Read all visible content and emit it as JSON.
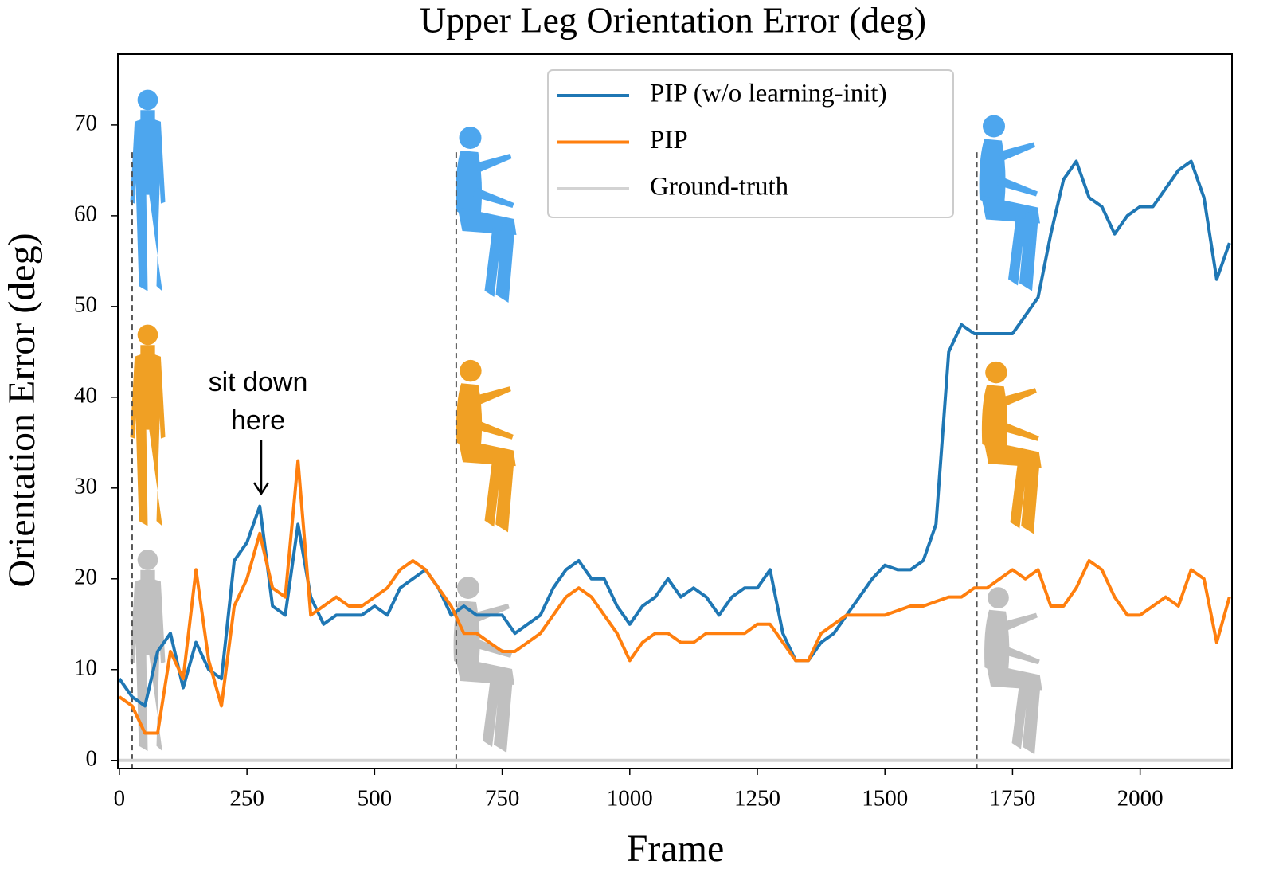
{
  "chart_data": {
    "type": "line",
    "title": "Upper Leg Orientation Error (deg)",
    "xlabel": "Frame",
    "ylabel": "Orientation Error (deg)",
    "x": [
      0,
      25,
      50,
      75,
      100,
      125,
      150,
      175,
      200,
      225,
      250,
      275,
      300,
      325,
      350,
      375,
      400,
      425,
      450,
      475,
      500,
      525,
      550,
      575,
      600,
      625,
      650,
      675,
      700,
      725,
      750,
      775,
      800,
      825,
      850,
      875,
      900,
      925,
      950,
      975,
      1000,
      1025,
      1050,
      1075,
      1100,
      1125,
      1150,
      1175,
      1200,
      1225,
      1250,
      1275,
      1300,
      1325,
      1350,
      1375,
      1400,
      1425,
      1450,
      1475,
      1500,
      1525,
      1550,
      1575,
      1600,
      1625,
      1650,
      1675,
      1700,
      1725,
      1750,
      1775,
      1800,
      1825,
      1850,
      1875,
      1900,
      1925,
      1950,
      1975,
      2000,
      2025,
      2050,
      2075,
      2100,
      2125,
      2150,
      2175
    ],
    "series": [
      {
        "name": "PIP (w/o learning-init)",
        "color": "#1f77b4",
        "values": [
          9,
          7,
          6,
          12,
          14,
          8,
          13,
          10,
          9,
          22,
          24,
          28,
          17,
          16,
          26,
          18,
          15,
          16,
          16,
          16,
          17,
          16,
          19,
          20,
          21,
          19,
          16,
          17,
          16,
          16,
          16,
          14,
          15,
          16,
          19,
          21,
          22,
          20,
          20,
          17,
          15,
          17,
          18,
          20,
          18,
          19,
          18,
          16,
          18,
          19,
          19,
          21,
          14,
          11,
          11,
          13,
          14,
          16,
          18,
          20,
          21.5,
          21,
          21,
          22,
          26,
          45,
          48,
          47,
          47,
          47,
          47,
          49,
          51,
          58,
          64,
          66,
          62,
          61,
          58,
          60,
          61,
          61,
          63,
          65,
          66,
          62,
          53,
          57
        ]
      },
      {
        "name": "PIP",
        "color": "#ff7f0e",
        "values": [
          7,
          6,
          3,
          3,
          12,
          9,
          21,
          11,
          6,
          17,
          20,
          25,
          19,
          18,
          33,
          16,
          17,
          18,
          17,
          17,
          18,
          19,
          21,
          22,
          21,
          19,
          17,
          14,
          14,
          13,
          12,
          12,
          13,
          14,
          16,
          18,
          19,
          18,
          16,
          14,
          11,
          13,
          14,
          14,
          13,
          13,
          14,
          14,
          14,
          14,
          15,
          15,
          13,
          11,
          11,
          14,
          15,
          16,
          16,
          16,
          16,
          16.5,
          17,
          17,
          17.5,
          18,
          18,
          19,
          19,
          20,
          21,
          20,
          21,
          17,
          17,
          19,
          22,
          21,
          18,
          16,
          16,
          17,
          18,
          17,
          21,
          20,
          13,
          18
        ]
      },
      {
        "name": "Ground-truth",
        "color": "#d3d3d3",
        "values": [
          0,
          0,
          0,
          0,
          0,
          0,
          0,
          0,
          0,
          0,
          0,
          0,
          0,
          0,
          0,
          0,
          0,
          0,
          0,
          0,
          0,
          0,
          0,
          0,
          0,
          0,
          0,
          0,
          0,
          0,
          0,
          0,
          0,
          0,
          0,
          0,
          0,
          0,
          0,
          0,
          0,
          0,
          0,
          0,
          0,
          0,
          0,
          0,
          0,
          0,
          0,
          0,
          0,
          0,
          0,
          0,
          0,
          0,
          0,
          0,
          0,
          0,
          0,
          0,
          0,
          0,
          0,
          0,
          0,
          0,
          0,
          0,
          0,
          0,
          0,
          0,
          0,
          0,
          0,
          0,
          0,
          0,
          0,
          0,
          0,
          0,
          0,
          0
        ]
      }
    ],
    "vlines": [
      25,
      660,
      1680
    ],
    "annotation": [
      "sit down",
      "here"
    ],
    "xlim": [
      -3,
      2180
    ],
    "xticks": [
      0,
      250,
      500,
      750,
      1000,
      1250,
      1500,
      1750,
      2000
    ],
    "ylim": [
      -0.9,
      77.8
    ],
    "yticks": [
      0,
      10,
      20,
      30,
      40,
      50,
      60,
      70
    ],
    "legend": "upper center"
  }
}
